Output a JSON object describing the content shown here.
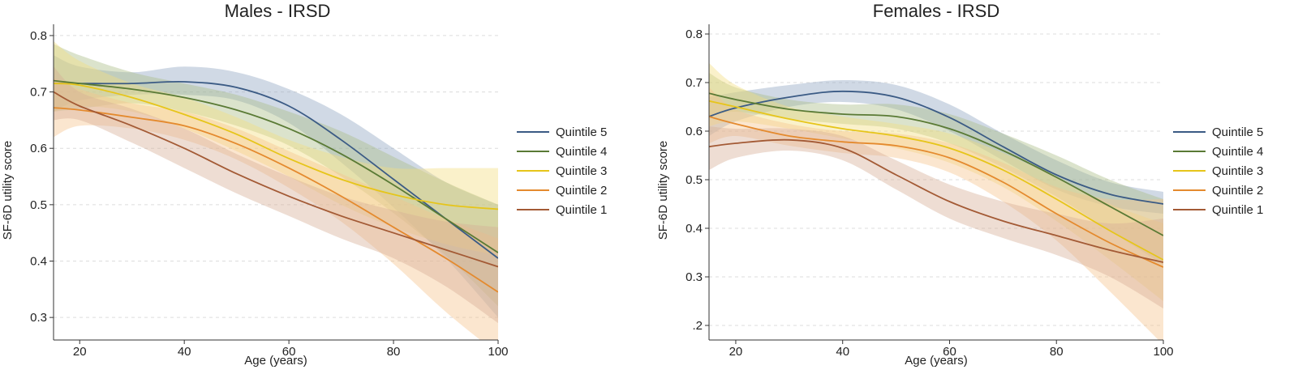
{
  "figure": {
    "left_title": "Males - IRSD",
    "right_title": "Females - IRSD"
  },
  "chart_data": [
    {
      "type": "line",
      "title": "Males - IRSD",
      "xlabel": "Age (years)",
      "ylabel": "SF-6D utility score",
      "xlim": [
        15,
        100
      ],
      "ylim": [
        0.26,
        0.82
      ],
      "xticks": [
        20,
        40,
        60,
        80,
        100
      ],
      "yticks": [
        0.3,
        0.4,
        0.5,
        0.6,
        0.7,
        0.8
      ],
      "ytick_labels": [
        "0.3",
        "0.4",
        "0.5",
        "0.6",
        "0.7",
        "0.8"
      ],
      "grid": "horizontal dashed",
      "legend": "right",
      "x": [
        15,
        20,
        30,
        40,
        50,
        60,
        70,
        80,
        90,
        100
      ],
      "series": [
        {
          "name": "Quintile 5",
          "color": "#3b5b85",
          "fill": "#8ea4c2",
          "values": [
            0.715,
            0.715,
            0.715,
            0.718,
            0.708,
            0.675,
            0.615,
            0.545,
            0.475,
            0.405
          ],
          "lower": [
            0.665,
            0.685,
            0.695,
            0.695,
            0.685,
            0.645,
            0.575,
            0.495,
            0.405,
            0.3
          ],
          "upper": [
            0.765,
            0.745,
            0.735,
            0.745,
            0.735,
            0.705,
            0.66,
            0.6,
            0.54,
            0.5
          ]
        },
        {
          "name": "Quintile 4",
          "color": "#5a7a35",
          "fill": "#a9bd86",
          "values": [
            0.72,
            0.715,
            0.705,
            0.69,
            0.668,
            0.635,
            0.59,
            0.535,
            0.475,
            0.415
          ],
          "lower": [
            0.665,
            0.67,
            0.68,
            0.665,
            0.64,
            0.605,
            0.55,
            0.485,
            0.41,
            0.32
          ],
          "upper": [
            0.785,
            0.765,
            0.735,
            0.715,
            0.695,
            0.665,
            0.63,
            0.585,
            0.54,
            0.5
          ]
        },
        {
          "name": "Quintile 3",
          "color": "#e6c51a",
          "fill": "#f2de80",
          "values": [
            0.715,
            0.712,
            0.69,
            0.66,
            0.625,
            0.582,
            0.545,
            0.518,
            0.5,
            0.492
          ],
          "lower": [
            0.665,
            0.675,
            0.665,
            0.635,
            0.595,
            0.55,
            0.5,
            0.46,
            0.43,
            0.41
          ],
          "upper": [
            0.79,
            0.755,
            0.715,
            0.69,
            0.655,
            0.615,
            0.585,
            0.565,
            0.565,
            0.565
          ]
        },
        {
          "name": "Quintile 2",
          "color": "#e48a2e",
          "fill": "#f5c48c",
          "values": [
            0.672,
            0.668,
            0.655,
            0.64,
            0.608,
            0.565,
            0.515,
            0.46,
            0.405,
            0.345
          ],
          "lower": [
            0.62,
            0.64,
            0.635,
            0.615,
            0.58,
            0.53,
            0.47,
            0.395,
            0.31,
            0.235
          ],
          "upper": [
            0.725,
            0.705,
            0.68,
            0.665,
            0.635,
            0.595,
            0.555,
            0.515,
            0.475,
            0.44
          ]
        },
        {
          "name": "Quintile 1",
          "color": "#a35a35",
          "fill": "#d7ad97",
          "values": [
            0.7,
            0.675,
            0.64,
            0.6,
            0.555,
            0.515,
            0.48,
            0.45,
            0.42,
            0.39
          ],
          "lower": [
            0.65,
            0.65,
            0.61,
            0.565,
            0.52,
            0.48,
            0.44,
            0.405,
            0.355,
            0.29
          ],
          "upper": [
            0.745,
            0.7,
            0.67,
            0.635,
            0.59,
            0.55,
            0.515,
            0.49,
            0.47,
            0.46
          ]
        }
      ]
    },
    {
      "type": "line",
      "title": "Females - IRSD",
      "xlabel": "Age (years)",
      "ylabel": "SF-6D utility score",
      "xlim": [
        15,
        100
      ],
      "ylim": [
        0.17,
        0.82
      ],
      "xticks": [
        20,
        40,
        60,
        80,
        100
      ],
      "yticks": [
        0.2,
        0.3,
        0.4,
        0.5,
        0.6,
        0.7,
        0.8
      ],
      "ytick_labels": [
        ".2",
        "0.3",
        "0.4",
        "0.5",
        "0.6",
        "0.7",
        "0.8"
      ],
      "grid": "horizontal dashed",
      "legend": "right",
      "x": [
        15,
        20,
        30,
        40,
        50,
        60,
        70,
        80,
        90,
        100
      ],
      "series": [
        {
          "name": "Quintile 5",
          "color": "#3b5b85",
          "fill": "#8ea4c2",
          "values": [
            0.63,
            0.648,
            0.67,
            0.682,
            0.67,
            0.628,
            0.568,
            0.51,
            0.47,
            0.45
          ],
          "lower": [
            0.59,
            0.62,
            0.65,
            0.66,
            0.645,
            0.6,
            0.54,
            0.48,
            0.445,
            0.43
          ],
          "upper": [
            0.67,
            0.68,
            0.695,
            0.705,
            0.695,
            0.655,
            0.595,
            0.54,
            0.495,
            0.475
          ]
        },
        {
          "name": "Quintile 4",
          "color": "#5a7a35",
          "fill": "#a9bd86",
          "values": [
            0.678,
            0.665,
            0.645,
            0.635,
            0.63,
            0.605,
            0.56,
            0.505,
            0.445,
            0.385
          ],
          "lower": [
            0.63,
            0.64,
            0.625,
            0.615,
            0.605,
            0.575,
            0.525,
            0.465,
            0.395,
            0.325
          ],
          "upper": [
            0.72,
            0.69,
            0.665,
            0.655,
            0.655,
            0.635,
            0.595,
            0.55,
            0.5,
            0.46
          ]
        },
        {
          "name": "Quintile 3",
          "color": "#e6c51a",
          "fill": "#f2de80",
          "values": [
            0.662,
            0.65,
            0.625,
            0.605,
            0.59,
            0.565,
            0.52,
            0.46,
            0.395,
            0.335
          ],
          "lower": [
            0.61,
            0.62,
            0.605,
            0.585,
            0.565,
            0.535,
            0.485,
            0.415,
            0.335,
            0.25
          ],
          "upper": [
            0.74,
            0.695,
            0.65,
            0.63,
            0.615,
            0.595,
            0.555,
            0.505,
            0.45,
            0.41
          ]
        },
        {
          "name": "Quintile 2",
          "color": "#e48a2e",
          "fill": "#f5c48c",
          "values": [
            0.63,
            0.615,
            0.59,
            0.578,
            0.57,
            0.545,
            0.495,
            0.43,
            0.37,
            0.32
          ],
          "lower": [
            0.575,
            0.59,
            0.57,
            0.555,
            0.545,
            0.515,
            0.455,
            0.375,
            0.27,
            0.16
          ],
          "upper": [
            0.69,
            0.645,
            0.615,
            0.6,
            0.595,
            0.575,
            0.535,
            0.485,
            0.46,
            0.46
          ]
        },
        {
          "name": "Quintile 1",
          "color": "#a35a35",
          "fill": "#d7ad97",
          "values": [
            0.568,
            0.575,
            0.582,
            0.565,
            0.51,
            0.455,
            0.415,
            0.385,
            0.355,
            0.33
          ],
          "lower": [
            0.52,
            0.545,
            0.56,
            0.54,
            0.48,
            0.42,
            0.38,
            0.345,
            0.3,
            0.235
          ],
          "upper": [
            0.61,
            0.605,
            0.605,
            0.59,
            0.54,
            0.49,
            0.455,
            0.43,
            0.41,
            0.42
          ]
        }
      ]
    }
  ]
}
